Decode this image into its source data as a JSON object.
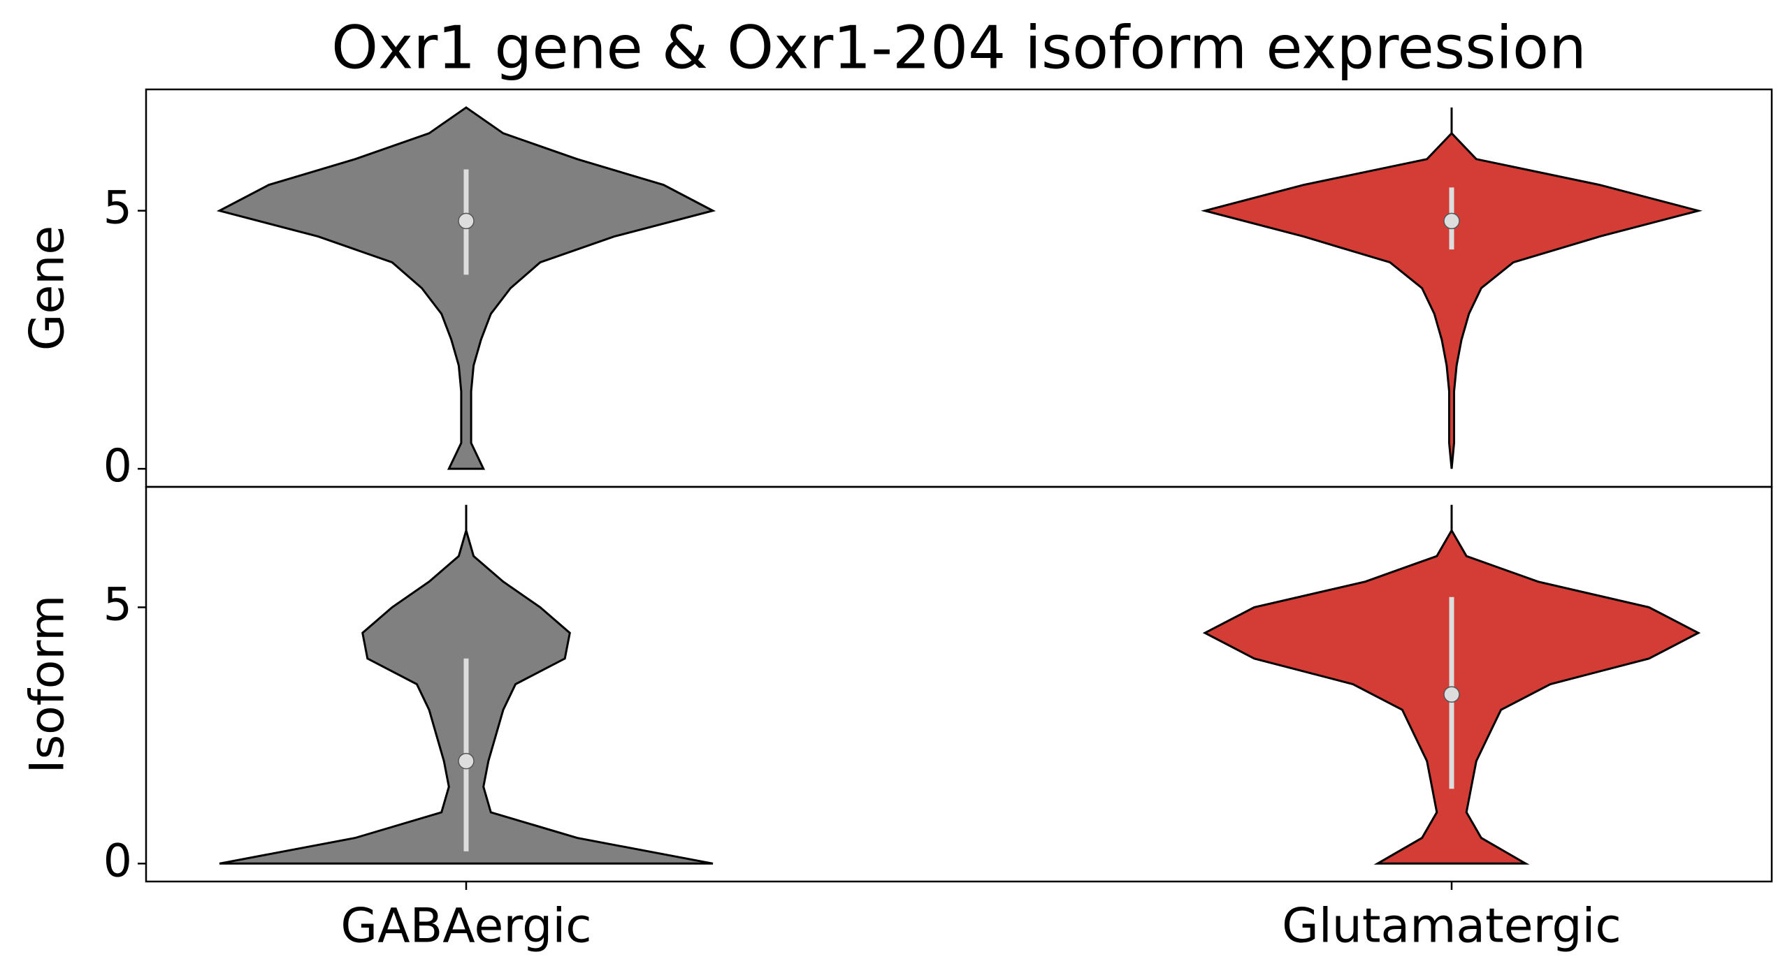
{
  "chart_data": {
    "type": "violin",
    "title": "Oxr1 gene & Oxr1-204 isoform expression",
    "categories": [
      "GABAergic",
      "Glutamatergic"
    ],
    "levels": [
      0,
      0.5,
      1,
      1.5,
      2,
      2.5,
      3,
      3.5,
      4,
      4.5,
      5,
      5.5,
      6,
      6.5,
      7
    ],
    "panels": [
      {
        "ylabel": "Gene",
        "ylim": [
          -0.35,
          7.35
        ],
        "yticks": [
          0,
          5
        ],
        "violins": [
          {
            "color": "#808080",
            "density": [
              0.07,
              0.02,
              0.02,
              0.02,
              0.03,
              0.06,
              0.1,
              0.18,
              0.3,
              0.6,
              1.0,
              0.8,
              0.45,
              0.15,
              0
            ],
            "q1": 3.76,
            "median": 4.8,
            "q3": 5.8
          },
          {
            "color": "#d43d36",
            "density": [
              0,
              0.01,
              0.01,
              0.01,
              0.02,
              0.04,
              0.07,
              0.12,
              0.25,
              0.6,
              1.0,
              0.6,
              0.1,
              0,
              0
            ],
            "q1": 4.25,
            "median": 4.8,
            "q3": 5.45
          }
        ]
      },
      {
        "ylabel": "Isoform",
        "ylim": [
          -0.35,
          7.35
        ],
        "yticks": [
          0,
          5
        ],
        "violins": [
          {
            "color": "#808080",
            "density": [
              1.0,
              0.45,
              0.1,
              0.07,
              0.09,
              0.12,
              0.15,
              0.2,
              0.4,
              0.42,
              0.3,
              0.15,
              0.03,
              0,
              0
            ],
            "q1": 0.24,
            "median": 2.0,
            "q3": 4.0
          },
          {
            "color": "#d43d36",
            "density": [
              0.3,
              0.12,
              0.06,
              0.08,
              0.1,
              0.15,
              0.2,
              0.4,
              0.8,
              1.0,
              0.8,
              0.35,
              0.06,
              0,
              0
            ],
            "q1": 1.46,
            "median": 3.3,
            "q3": 5.2
          }
        ]
      }
    ]
  }
}
